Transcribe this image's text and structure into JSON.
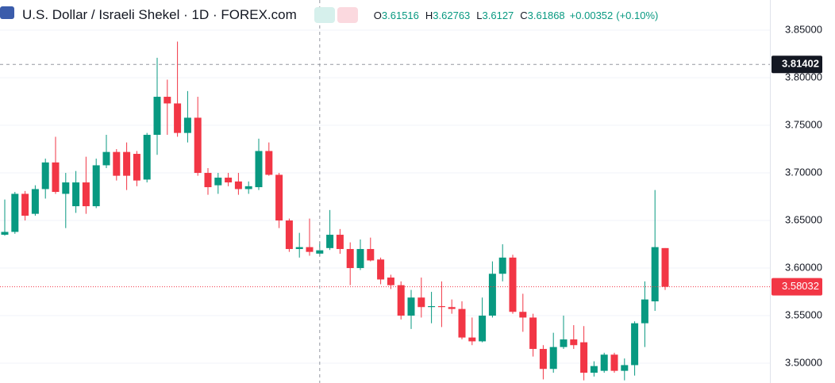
{
  "chart_data": {
    "type": "candlestick",
    "title": "U.S. Dollar / Israeli Shekel · 1D · FOREX.com",
    "ohlc_labels": [
      "O",
      "H",
      "L",
      "C"
    ],
    "change": {
      "value": 0.00352,
      "label": "+0.00352"
    },
    "change_percent": {
      "value": 0.1,
      "label": "(+0.10%)"
    },
    "up_color": "#089981",
    "down_color": "#f23645",
    "open": [
      3.635,
      3.638,
      3.678,
      3.657,
      3.683,
      3.711,
      3.678,
      3.665,
      3.69,
      3.665,
      3.708,
      3.722,
      3.722,
      3.72,
      3.693,
      3.74,
      3.78,
      3.773,
      3.742,
      3.758,
      3.7,
      3.687,
      3.695,
      3.691,
      3.683,
      3.685,
      3.723,
      3.698,
      3.65,
      3.62,
      3.622,
      3.61516,
      3.621,
      3.635,
      3.62,
      3.6,
      3.62,
      3.609,
      3.59,
      3.582,
      3.55,
      3.569,
      3.559,
      3.56,
      3.559,
      3.557,
      3.527,
      3.523,
      3.55,
      3.594,
      3.611,
      3.554,
      3.548,
      3.515,
      3.494,
      3.517,
      3.525,
      3.522,
      3.49,
      3.492,
      3.509,
      3.492,
      3.498,
      3.542,
      3.565,
      3.621
    ],
    "high": [
      3.672,
      3.68,
      3.681,
      3.687,
      3.715,
      3.738,
      3.7,
      3.702,
      3.717,
      3.715,
      3.74,
      3.725,
      3.732,
      3.723,
      3.742,
      3.821,
      3.798,
      3.838,
      3.786,
      3.78,
      3.705,
      3.7,
      3.7,
      3.7,
      3.691,
      3.736,
      3.732,
      3.7,
      3.652,
      3.637,
      3.652,
      3.62763,
      3.661,
      3.641,
      3.627,
      3.63,
      3.632,
      3.611,
      3.593,
      3.586,
      3.577,
      3.59,
      3.575,
      3.586,
      3.567,
      3.565,
      3.548,
      3.569,
      3.607,
      3.625,
      3.614,
      3.573,
      3.552,
      3.519,
      3.532,
      3.55,
      3.54,
      3.539,
      3.502,
      3.511,
      3.511,
      3.505,
      3.544,
      3.586,
      3.682,
      3.621
    ],
    "low": [
      3.634,
      3.636,
      3.65,
      3.655,
      3.673,
      3.678,
      3.642,
      3.658,
      3.657,
      3.663,
      3.705,
      3.692,
      3.682,
      3.686,
      3.69,
      3.719,
      3.74,
      3.738,
      3.732,
      3.697,
      3.677,
      3.678,
      3.686,
      3.677,
      3.678,
      3.682,
      3.697,
      3.642,
      3.617,
      3.611,
      3.613,
      3.6127,
      3.619,
      3.615,
      3.582,
      3.598,
      3.607,
      3.583,
      3.578,
      3.546,
      3.536,
      3.548,
      3.542,
      3.538,
      3.552,
      3.525,
      3.519,
      3.522,
      3.548,
      3.586,
      3.552,
      3.533,
      3.507,
      3.483,
      3.49,
      3.515,
      3.515,
      3.482,
      3.486,
      3.49,
      3.49,
      3.482,
      3.487,
      3.517,
      3.555,
      3.577
    ],
    "close": [
      3.638,
      3.678,
      3.655,
      3.683,
      3.711,
      3.68,
      3.69,
      3.69,
      3.665,
      3.708,
      3.722,
      3.697,
      3.697,
      3.692,
      3.74,
      3.78,
      3.773,
      3.742,
      3.758,
      3.7,
      3.685,
      3.695,
      3.69,
      3.683,
      3.686,
      3.723,
      3.698,
      3.65,
      3.62,
      3.622,
      3.617,
      3.61868,
      3.635,
      3.62,
      3.6,
      3.62,
      3.608,
      3.588,
      3.582,
      3.55,
      3.569,
      3.559,
      3.56,
      3.559,
      3.557,
      3.527,
      3.523,
      3.55,
      3.594,
      3.611,
      3.554,
      3.548,
      3.515,
      3.494,
      3.517,
      3.525,
      3.519,
      3.49,
      3.497,
      3.509,
      3.492,
      3.498,
      3.542,
      3.567,
      3.622,
      3.58032
    ],
    "ylim": [
      3.4792,
      3.8817
    ],
    "yticks": [
      {
        "value": 3.5,
        "label": "3.50000"
      },
      {
        "value": 3.55,
        "label": "3.55000"
      },
      {
        "value": 3.6,
        "label": "3.60000"
      },
      {
        "value": 3.65,
        "label": "3.65000"
      },
      {
        "value": 3.7,
        "label": "3.70000"
      },
      {
        "value": 3.75,
        "label": "3.75000"
      },
      {
        "value": 3.8,
        "label": "3.80000"
      },
      {
        "value": 3.85,
        "label": "3.85000"
      }
    ],
    "grid": true,
    "crosshair": {
      "candle": 31,
      "price": 3.81402
    },
    "last_price": 3.58032
  }
}
